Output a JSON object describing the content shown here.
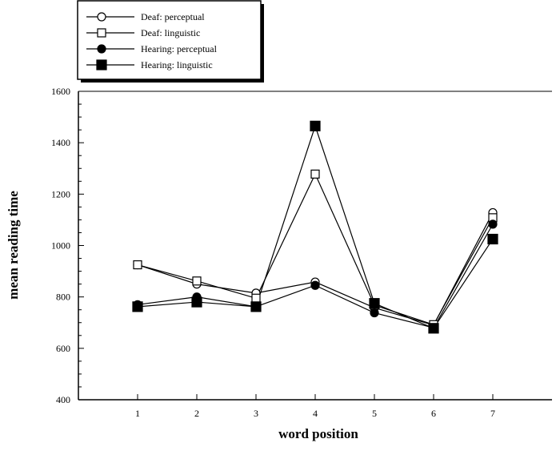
{
  "chart_data": {
    "type": "line",
    "title": "",
    "xlabel": "word position",
    "ylabel": "mean reading time",
    "x": [
      1,
      2,
      3,
      4,
      5,
      6,
      7
    ],
    "xlim": [
      0,
      8
    ],
    "ylim": [
      400,
      1600
    ],
    "x_ticks": [
      "1",
      "2",
      "3",
      "4",
      "5",
      "6",
      "7"
    ],
    "y_ticks": [
      "400",
      "600",
      "800",
      "1000",
      "1200",
      "1400",
      "1600"
    ],
    "grid": false,
    "legend_position": "top-left",
    "series": [
      {
        "name": "Deaf: perceptual",
        "marker": "open-circle",
        "values": [
          925,
          850,
          815,
          858,
          758,
          690,
          1128
        ]
      },
      {
        "name": "Deaf: linguistic",
        "marker": "open-square",
        "values": [
          925,
          862,
          795,
          1278,
          768,
          692,
          1108
        ]
      },
      {
        "name": "Hearing: perceptual",
        "marker": "filled-circle",
        "values": [
          770,
          800,
          762,
          845,
          738,
          680,
          1083
        ]
      },
      {
        "name": "Hearing: linguistic",
        "marker": "filled-square",
        "values": [
          762,
          780,
          762,
          1465,
          775,
          678,
          1025
        ]
      }
    ]
  }
}
